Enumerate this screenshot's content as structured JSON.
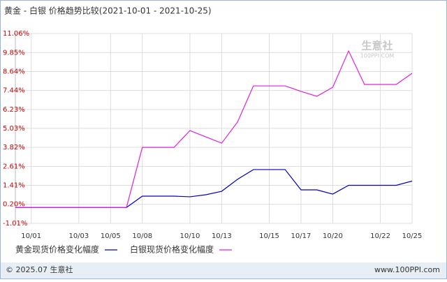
{
  "chart_data": {
    "type": "line",
    "title": "黄金 - 白银 价格趋势比较(2021-10-01 - 2021-10-25)",
    "categories": [
      null,
      "10/01",
      null,
      null,
      "10/03",
      null,
      "10/05",
      null,
      "10/08",
      null,
      null,
      "10/10",
      null,
      "10/13",
      null,
      null,
      "10/15",
      null,
      "10/17",
      null,
      "10/20",
      null,
      null,
      "10/22",
      null,
      "10/25"
    ],
    "series": [
      {
        "name": "黄金现货价格变化幅度",
        "color": "#0000cc",
        "values": [
          0,
          0,
          0,
          0,
          0,
          0,
          0,
          0,
          0.72,
          0.72,
          0.72,
          0.68,
          0.81,
          1.03,
          1.79,
          2.41,
          2.41,
          2.41,
          1.12,
          1.12,
          0.85,
          1.41,
          1.41,
          1.41,
          1.41,
          1.68
        ]
      },
      {
        "name": "白银现货价格变化幅度",
        "color": "#e020e0",
        "values": [
          0,
          0,
          0,
          0,
          0,
          0,
          0,
          0,
          3.82,
          3.82,
          3.82,
          4.89,
          4.49,
          4.09,
          5.43,
          7.73,
          7.73,
          7.73,
          7.38,
          7.07,
          7.64,
          9.95,
          7.82,
          7.82,
          7.82,
          8.53
        ]
      }
    ],
    "ylim": [
      -1.01,
      11.06
    ],
    "yticks": [
      {
        "value": -1.01,
        "label": "-1.01%"
      },
      {
        "value": 0.2,
        "label": "0.20%"
      },
      {
        "value": 1.41,
        "label": "1.41%"
      },
      {
        "value": 2.61,
        "label": "2.61%"
      },
      {
        "value": 3.82,
        "label": "3.82%"
      },
      {
        "value": 5.03,
        "label": "5.03%"
      },
      {
        "value": 6.23,
        "label": "6.23%"
      },
      {
        "value": 7.44,
        "label": "7.44%"
      },
      {
        "value": 8.64,
        "label": "8.64%"
      },
      {
        "value": 9.85,
        "label": "9.85%"
      },
      {
        "value": 11.06,
        "label": "11.06%"
      }
    ],
    "grid": true,
    "watermark": "生意社",
    "watermark_sub": "100PPI.COM",
    "footer_left": "© 2025.07 生意社",
    "footer_right": "www.100PPI.com"
  }
}
